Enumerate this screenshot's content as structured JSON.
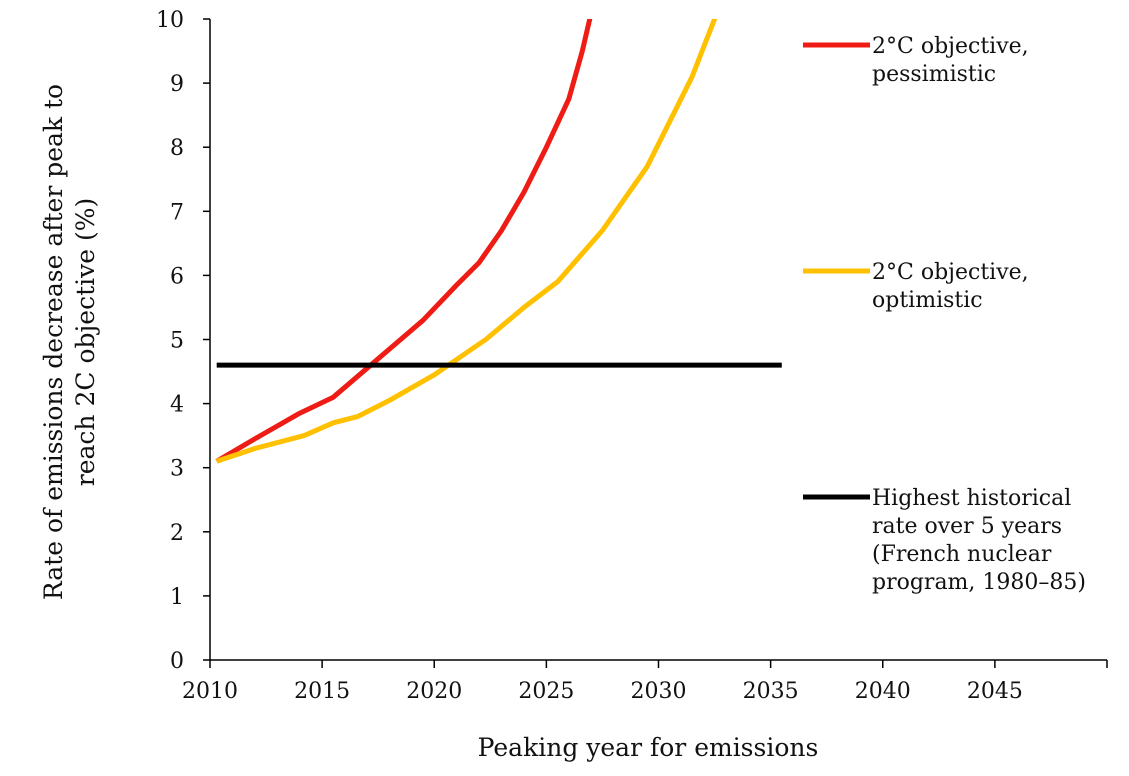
{
  "chart_data": {
    "type": "line",
    "title": "",
    "xlabel": "Peaking year for emissions",
    "ylabel_lines": [
      "Rate of emissions decrease after peak to",
      "reach 2C objective (%)"
    ],
    "xlim": [
      2010,
      2050
    ],
    "ylim": [
      0,
      10
    ],
    "x_ticks": [
      2010,
      2015,
      2020,
      2025,
      2030,
      2035,
      2040,
      2045
    ],
    "y_ticks": [
      0,
      1,
      2,
      3,
      4,
      5,
      6,
      7,
      8,
      9,
      10
    ],
    "grid": false,
    "legend_position": "right",
    "series": [
      {
        "key": "pessimistic",
        "legend_lines": [
          "2°C objective,",
          "pessimistic"
        ],
        "color": "#ee1c14",
        "points": [
          [
            2010.3,
            3.1
          ],
          [
            2012,
            3.45
          ],
          [
            2014,
            3.85
          ],
          [
            2015.5,
            4.1
          ],
          [
            2017,
            4.55
          ],
          [
            2018.5,
            5.0
          ],
          [
            2019.5,
            5.3
          ],
          [
            2021,
            5.85
          ],
          [
            2022,
            6.2
          ],
          [
            2023,
            6.7
          ],
          [
            2024,
            7.3
          ],
          [
            2025,
            8.0
          ],
          [
            2026,
            8.75
          ],
          [
            2026.6,
            9.5
          ],
          [
            2027.2,
            10.4
          ]
        ]
      },
      {
        "key": "optimistic",
        "legend_lines": [
          "2°C objective,",
          "optimistic"
        ],
        "color": "#ffc000",
        "points": [
          [
            2010.3,
            3.1
          ],
          [
            2012,
            3.3
          ],
          [
            2014.2,
            3.5
          ],
          [
            2015.5,
            3.7
          ],
          [
            2016.6,
            3.8
          ],
          [
            2018,
            4.05
          ],
          [
            2020,
            4.45
          ],
          [
            2022.3,
            5.0
          ],
          [
            2024,
            5.5
          ],
          [
            2025.5,
            5.9
          ],
          [
            2027.5,
            6.7
          ],
          [
            2029.5,
            7.7
          ],
          [
            2031.5,
            9.1
          ],
          [
            2032.5,
            10.0
          ],
          [
            2033,
            10.4
          ]
        ]
      },
      {
        "key": "historical",
        "legend_lines": [
          "Highest historical",
          "rate over 5 years",
          "(French nuclear",
          "program, 1980–85)"
        ],
        "color": "#000000",
        "points": [
          [
            2010.3,
            4.6
          ],
          [
            2035.5,
            4.6
          ]
        ]
      }
    ]
  }
}
